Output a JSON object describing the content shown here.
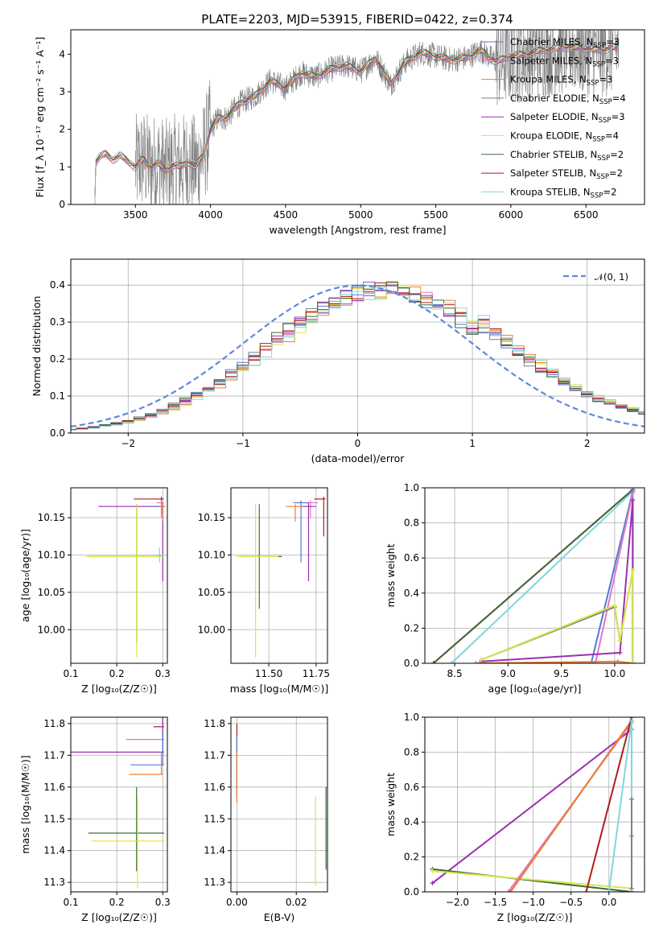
{
  "figure": {
    "title": "PLATE=2203, MJD=53915, FIBERID=0422, z=0.374"
  },
  "legend_models": [
    {
      "name": "Chabrier MILES",
      "nssp": "3",
      "color": "#4f7ad6"
    },
    {
      "name": "Salpeter MILES",
      "nssp": "3",
      "color": "#e377c2"
    },
    {
      "name": "Kroupa MILES",
      "nssp": "3",
      "color": "#ee7f2d"
    },
    {
      "name": "Chabrier ELODIE",
      "nssp": "4",
      "color": "#808080"
    },
    {
      "name": "Salpeter ELODIE",
      "nssp": "3",
      "color": "#9b30b0"
    },
    {
      "name": "Kroupa ELODIE",
      "nssp": "4",
      "color": "#d8e84a"
    },
    {
      "name": "Chabrier STELIB",
      "nssp": "2",
      "color": "#3d6b3d"
    },
    {
      "name": "Salpeter STELIB",
      "nssp": "2",
      "color": "#b01c1c"
    },
    {
      "name": "Kroupa STELIB",
      "nssp": "2",
      "color": "#7fd7dc"
    }
  ],
  "chart_data": [
    {
      "id": "spectrum",
      "type": "line",
      "xlabel": "wavelength [Angstrom, rest frame]",
      "ylabel": "Flux [f_λ 10⁻¹⁷ erg cm⁻² s⁻¹ A⁻¹]",
      "xlim": [
        3070,
        6890
      ],
      "ylim": [
        0,
        4.65
      ],
      "xticks": [
        3500,
        4000,
        4500,
        5000,
        5500,
        6000,
        6500
      ],
      "yticks": [
        0,
        1,
        2,
        3,
        4
      ],
      "grid": false,
      "legend": "right",
      "model_continuum": {
        "x": [
          3230,
          3260,
          3300,
          3350,
          3400,
          3450,
          3500,
          3550,
          3600,
          3650,
          3700,
          3750,
          3800,
          3850,
          3900,
          3950,
          4000,
          4050,
          4100,
          4200,
          4300,
          4400,
          4500,
          4600,
          4700,
          4800,
          4900,
          5000,
          5100,
          5200,
          5300,
          5400,
          5500,
          5600,
          5700,
          5800,
          5900,
          6000,
          6100,
          6200,
          6300,
          6400,
          6500,
          6600,
          6700
        ],
        "y": [
          1.1,
          1.25,
          1.35,
          1.2,
          1.3,
          1.15,
          1.0,
          1.2,
          1.0,
          1.1,
          0.9,
          1.05,
          1.0,
          1.15,
          1.0,
          1.3,
          2.0,
          2.3,
          2.3,
          2.7,
          2.9,
          3.3,
          3.1,
          3.5,
          3.4,
          3.6,
          3.7,
          3.55,
          3.9,
          3.2,
          3.8,
          4.05,
          3.95,
          3.85,
          3.9,
          4.1,
          3.8,
          3.95,
          4.0,
          4.1,
          4.15,
          4.2,
          4.15,
          4.1,
          4.2
        ]
      },
      "observed_range": [
        3500,
        6720
      ]
    },
    {
      "id": "residuals",
      "type": "line",
      "xlabel": "(data-model)/error",
      "ylabel": "Normed distribution",
      "xlim": [
        -2.5,
        2.5
      ],
      "ylim": [
        0,
        0.47
      ],
      "xticks": [
        -2,
        -1,
        0,
        1,
        2
      ],
      "yticks": [
        0.0,
        0.1,
        0.2,
        0.3,
        0.4
      ],
      "grid": true,
      "legend": "upper right",
      "legend_label": "𝒩(0, 1)",
      "reference": "normal(0,1)"
    },
    {
      "id": "age_vs_Z",
      "type": "scatter",
      "xlabel": "Z [log₁₀(Z/Z☉)]",
      "ylabel": "age  [log₁₀(age/yr)]",
      "xlim": [
        0.1,
        0.31
      ],
      "ylim": [
        9.955,
        10.19
      ],
      "xticks": [
        0.1,
        0.2,
        0.3
      ],
      "yticks": [
        10.0,
        10.05,
        10.1,
        10.15
      ],
      "grid": true,
      "crosses": [
        {
          "x": 0.297,
          "y": 10.175,
          "xerr": [
            0.06,
            0.005
          ],
          "yerr": [
            0.02,
            0.003
          ],
          "model": 7
        },
        {
          "x": 0.297,
          "y": 10.17,
          "xerr": [
            0.01,
            0.005
          ],
          "yerr": [
            0.02,
            0.003
          ],
          "model": 1
        },
        {
          "x": 0.3,
          "y": 10.165,
          "xerr": [
            0.14,
            0.005
          ],
          "yerr": [
            0.1,
            0.005
          ],
          "model": 4
        },
        {
          "x": 0.3,
          "y": 10.165,
          "xerr": [
            0.02,
            0.005
          ],
          "yerr": [
            0.02,
            0.003
          ],
          "model": 0
        },
        {
          "x": 0.3,
          "y": 10.165,
          "xerr": [
            0.01,
            0.005
          ],
          "yerr": [
            0.02,
            0.003
          ],
          "model": 2
        },
        {
          "x": 0.243,
          "y": 10.098,
          "xerr": [
            0.105,
            0.06
          ],
          "yerr": [
            0.115,
            0.07
          ],
          "model": 6
        },
        {
          "x": 0.243,
          "y": 10.098,
          "xerr": [
            0.11,
            0.06
          ],
          "yerr": [
            0.135,
            0.07
          ],
          "model": 5
        },
        {
          "x": 0.293,
          "y": 10.1,
          "xerr": [
            0.01,
            0.01
          ],
          "yerr": [
            0.01,
            0.01
          ],
          "model": 8
        }
      ]
    },
    {
      "id": "age_vs_mass",
      "type": "scatter",
      "xlabel": "mass [log₁₀(M/M☉)]",
      "ylabel": "",
      "xlim": [
        11.3,
        11.81
      ],
      "ylim": [
        9.955,
        10.19
      ],
      "xticks": [
        11.5,
        11.75
      ],
      "yticks": [
        10.0,
        10.05,
        10.1,
        10.15
      ],
      "grid": true,
      "crosses": [
        {
          "x": 11.79,
          "y": 10.175,
          "xerr": [
            0.05,
            0.01
          ],
          "yerr": [
            0.05,
            0.003
          ],
          "model": 7
        },
        {
          "x": 11.72,
          "y": 10.17,
          "xerr": [
            0.03,
            0.04
          ],
          "yerr": [
            0.02,
            0.003
          ],
          "model": 1
        },
        {
          "x": 11.64,
          "y": 10.165,
          "xerr": [
            0.05,
            0.05
          ],
          "yerr": [
            0.02,
            0.003
          ],
          "model": 2
        },
        {
          "x": 11.67,
          "y": 10.17,
          "xerr": [
            0.04,
            0.04
          ],
          "yerr": [
            0.08,
            0.003
          ],
          "model": 0
        },
        {
          "x": 11.71,
          "y": 10.165,
          "xerr": [
            0.03,
            0.04
          ],
          "yerr": [
            0.1,
            0.005
          ],
          "model": 4
        },
        {
          "x": 11.45,
          "y": 10.098,
          "xerr": [
            0.1,
            0.12
          ],
          "yerr": [
            0.07,
            0.07
          ],
          "model": 6
        },
        {
          "x": 11.43,
          "y": 10.098,
          "xerr": [
            0.1,
            0.12
          ],
          "yerr": [
            0.135,
            0.07
          ],
          "model": 5
        }
      ]
    },
    {
      "id": "weight_vs_age",
      "type": "line",
      "xlabel": "age  [log₁₀(age/yr)]",
      "ylabel": "mass weight",
      "xlim": [
        8.22,
        10.28
      ],
      "ylim": [
        0,
        1.0
      ],
      "xticks": [
        8.5,
        9.0,
        9.5,
        10.0
      ],
      "yticks": [
        0.0,
        0.2,
        0.4,
        0.6,
        0.8,
        1.0
      ],
      "grid": true,
      "series": [
        {
          "model": 8,
          "x": [
            8.47,
            10.17,
            10.17
          ],
          "y": [
            0.0,
            0.98,
            0.0
          ]
        },
        {
          "model": 7,
          "x": [
            8.3,
            10.17
          ],
          "y": [
            0.0,
            0.99
          ]
        },
        {
          "model": 6,
          "x": [
            8.3,
            10.17
          ],
          "y": [
            0.0,
            0.99
          ]
        },
        {
          "model": 0,
          "x": [
            8.7,
            9.78,
            10.17,
            10.17
          ],
          "y": [
            0.0,
            0.0,
            0.98,
            0.0
          ]
        },
        {
          "model": 1,
          "x": [
            8.7,
            9.82,
            10.17,
            10.17
          ],
          "y": [
            0.0,
            0.0,
            0.97,
            0.0
          ]
        },
        {
          "model": 2,
          "x": [
            8.7,
            10.03,
            10.17
          ],
          "y": [
            0.0,
            0.01,
            0.0
          ]
        },
        {
          "model": 4,
          "x": [
            8.75,
            10.05,
            10.17,
            10.17
          ],
          "y": [
            0.01,
            0.06,
            0.93,
            0.0
          ]
        },
        {
          "model": 3,
          "x": [
            8.75,
            10.0,
            10.05,
            10.17,
            10.17
          ],
          "y": [
            0.02,
            0.32,
            0.13,
            0.53,
            0.0
          ]
        },
        {
          "model": 5,
          "x": [
            8.75,
            10.0,
            10.05,
            10.17,
            10.17
          ],
          "y": [
            0.02,
            0.33,
            0.13,
            0.53,
            0.0
          ]
        }
      ]
    },
    {
      "id": "mass_vs_Z",
      "type": "scatter",
      "xlabel": "Z [log₁₀(Z/Z☉)]",
      "ylabel": "mass [log₁₀(M/M☉)]",
      "xlim": [
        0.1,
        0.31
      ],
      "ylim": [
        11.27,
        11.82
      ],
      "xticks": [
        0.1,
        0.2,
        0.3
      ],
      "yticks": [
        11.3,
        11.4,
        11.5,
        11.6,
        11.7,
        11.8
      ],
      "grid": true,
      "crosses": [
        {
          "x": 0.3,
          "y": 11.79,
          "xerr": [
            0.02,
            0.003
          ],
          "yerr": [
            0.0,
            0.22
          ],
          "model": 7
        },
        {
          "x": 0.3,
          "y": 11.75,
          "xerr": [
            0.08,
            0.003
          ],
          "yerr": [
            0.0,
            0.18
          ],
          "model": 1
        },
        {
          "x": 0.3,
          "y": 11.71,
          "xerr": [
            0.2,
            0.003
          ],
          "yerr": [
            0.0,
            0.14
          ],
          "model": 4
        },
        {
          "x": 0.3,
          "y": 11.67,
          "xerr": [
            0.07,
            0.003
          ],
          "yerr": [
            0.0,
            0.1
          ],
          "model": 0
        },
        {
          "x": 0.297,
          "y": 11.64,
          "xerr": [
            0.07,
            0.003
          ],
          "yerr": [
            0.0,
            0.07
          ],
          "model": 2
        },
        {
          "x": 0.243,
          "y": 11.455,
          "xerr": [
            0.105,
            0.06
          ],
          "yerr": [
            0.12,
            0.145
          ],
          "model": 6
        },
        {
          "x": 0.245,
          "y": 11.43,
          "xerr": [
            0.1,
            0.06
          ],
          "yerr": [
            0.15,
            0.14
          ],
          "model": 5
        }
      ]
    },
    {
      "id": "mass_vs_ebv",
      "type": "scatter",
      "xlabel": "E(B-V)",
      "ylabel": "",
      "xlim": [
        -0.002,
        0.0305
      ],
      "ylim": [
        11.27,
        11.82
      ],
      "xticks": [
        0.0,
        0.02
      ],
      "yticks": [
        11.3,
        11.4,
        11.5,
        11.6,
        11.7,
        11.8
      ],
      "grid": true,
      "crosses": [
        {
          "x": 0.0,
          "y": 11.79,
          "xerr": [
            0,
            0
          ],
          "yerr": [
            0.22,
            0.01
          ],
          "model": 7
        },
        {
          "x": 0.0,
          "y": 11.7,
          "xerr": [
            0,
            0
          ],
          "yerr": [
            0.14,
            0.06
          ],
          "model": 0
        },
        {
          "x": 0.0,
          "y": 11.65,
          "xerr": [
            0,
            0
          ],
          "yerr": [
            0.1,
            0.06
          ],
          "model": 2
        },
        {
          "x": 0.03,
          "y": 11.47,
          "xerr": [
            0,
            0
          ],
          "yerr": [
            0.13,
            0.13
          ],
          "model": 6
        },
        {
          "x": 0.0265,
          "y": 11.43,
          "xerr": [
            0,
            0
          ],
          "yerr": [
            0.14,
            0.14
          ],
          "model": 5
        }
      ]
    },
    {
      "id": "weight_vs_Z",
      "type": "line",
      "xlabel": "Z [log₁₀(Z/Z☉)]",
      "ylabel": "mass weight",
      "xlim": [
        -2.43,
        0.47
      ],
      "ylim": [
        0,
        1.0
      ],
      "xticks": [
        -2.0,
        -1.5,
        -1.0,
        -0.5,
        0.0
      ],
      "yticks": [
        0.0,
        0.2,
        0.4,
        0.6,
        0.8,
        1.0
      ],
      "grid": true,
      "series": [
        {
          "model": 4,
          "x": [
            -2.33,
            0.3,
            0.3
          ],
          "y": [
            0.05,
            0.93,
            0.0
          ]
        },
        {
          "model": 6,
          "x": [
            -2.33,
            0.3,
            0.3
          ],
          "y": [
            0.13,
            0.0,
            1.0
          ]
        },
        {
          "model": 5,
          "x": [
            -2.33,
            0.3,
            0.3
          ],
          "y": [
            0.12,
            0.02,
            0.53
          ]
        },
        {
          "model": 0,
          "x": [
            -1.3,
            0.3,
            0.3
          ],
          "y": [
            0.0,
            0.98,
            0.0
          ]
        },
        {
          "model": 1,
          "x": [
            -1.33,
            0.3,
            0.3
          ],
          "y": [
            0.0,
            0.97,
            0.0
          ]
        },
        {
          "model": 2,
          "x": [
            -1.3,
            0.3,
            0.3
          ],
          "y": [
            0.0,
            0.98,
            0.0
          ]
        },
        {
          "model": 7,
          "x": [
            -0.3,
            0.3,
            0.3
          ],
          "y": [
            0.0,
            1.0,
            0.0
          ]
        },
        {
          "model": 8,
          "x": [
            0.0,
            0.3,
            0.3
          ],
          "y": [
            0.0,
            0.98,
            0.0
          ]
        },
        {
          "model": 3,
          "x": [
            0.3,
            0.3,
            0.3
          ],
          "y": [
            0.02,
            0.32,
            0.53
          ]
        }
      ]
    }
  ]
}
